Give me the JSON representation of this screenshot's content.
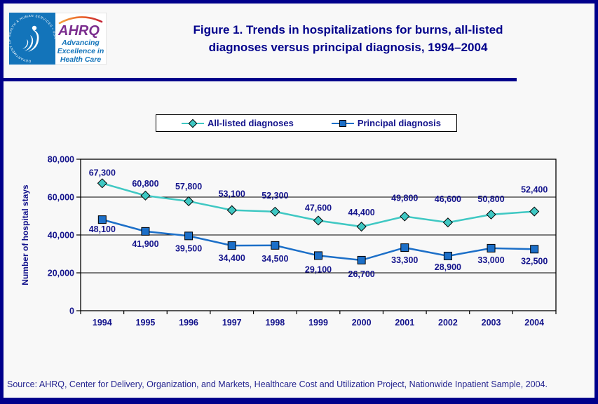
{
  "page": {
    "bg_color": "#f8f8f8",
    "frame_color": "#00008b"
  },
  "header": {
    "title_line1": "Figure 1. Trends in hospitalizations for burns, all-listed",
    "title_line2": "diagnoses versus principal diagnosis, 1994–2004",
    "logo": {
      "agency": "AHRQ",
      "tagline_line1": "Advancing",
      "tagline_line2": "Excellence in",
      "tagline_line3": "Health Care",
      "seal_text": "DEPARTMENT OF HEALTH & HUMAN SERVICES • USA",
      "hhs_blue": "#1374ba",
      "ahrq_purple": "#7b2e8e"
    }
  },
  "legend": {
    "items": [
      {
        "label": "All-listed diagnoses",
        "marker": "diamond",
        "color": "#3fc8c3"
      },
      {
        "label": "Principal diagnosis",
        "marker": "square",
        "color": "#1c6fc8"
      }
    ]
  },
  "chart_data": {
    "type": "line",
    "title": "Trends in hospitalizations for burns, all-listed diagnoses versus principal diagnosis, 1994-2004",
    "categories": [
      "1994",
      "1995",
      "1996",
      "1997",
      "1998",
      "1999",
      "2000",
      "2001",
      "2002",
      "2003",
      "2004"
    ],
    "series": [
      {
        "name": "All-listed diagnoses",
        "marker": "diamond",
        "color": "#3fc8c3",
        "values": [
          67300,
          60800,
          57800,
          53100,
          52300,
          47600,
          44400,
          49800,
          46600,
          50800,
          52400
        ],
        "label_dy": [
          -11,
          -13,
          -17,
          -19,
          -19,
          -14,
          -16,
          -22,
          -29,
          -18,
          -27
        ]
      },
      {
        "name": "Principal diagnosis",
        "marker": "square",
        "color": "#1c6fc8",
        "values": [
          48100,
          41900,
          39500,
          34400,
          34500,
          29100,
          26700,
          33300,
          28900,
          33000,
          32500
        ],
        "label_dy": [
          18,
          22,
          22,
          22,
          23,
          24,
          24,
          22,
          20,
          21,
          21
        ]
      }
    ],
    "xlabel": "",
    "ylabel": "Number of hospital stays",
    "ylim": [
      0,
      80000
    ],
    "ytick_step": 20000,
    "ytick_labels": [
      "0",
      "20,000",
      "40,000",
      "60,000",
      "80,000"
    ],
    "grid": true,
    "legend_position": "top",
    "text_color": "#14148c",
    "axis_color": "#000000"
  },
  "footer": {
    "source": "Source: AHRQ, Center for Delivery, Organization, and Markets, Healthcare Cost and Utilization Project, Nationwide Inpatient Sample, 2004."
  }
}
